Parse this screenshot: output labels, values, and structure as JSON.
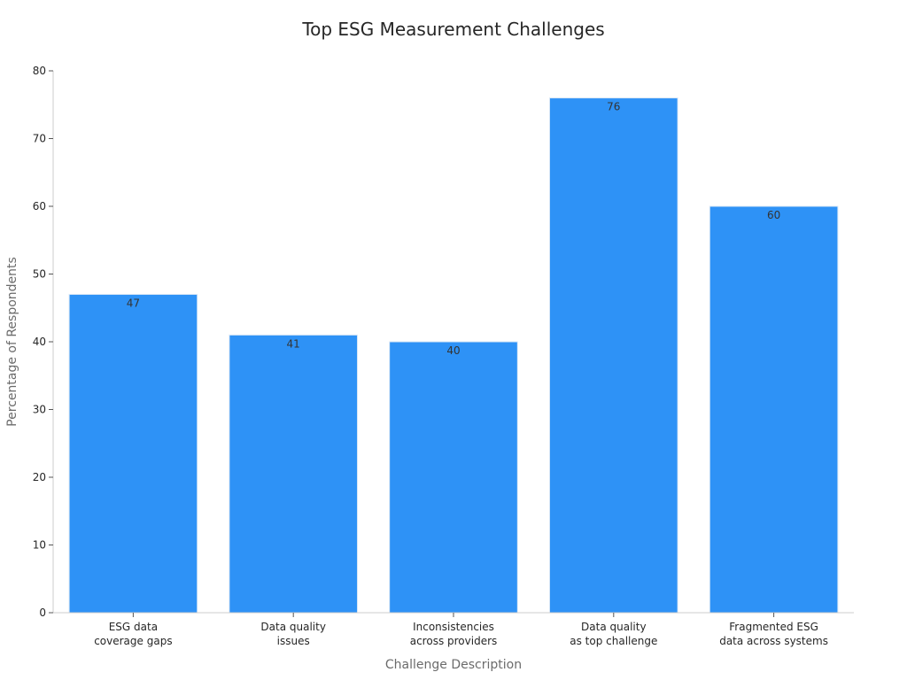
{
  "chart_data": {
    "type": "bar",
    "title": "Top ESG Measurement Challenges",
    "xlabel": "Challenge Description",
    "ylabel": "Percentage of Respondents",
    "categories": [
      [
        "ESG data",
        "coverage gaps"
      ],
      [
        "Data quality",
        "issues"
      ],
      [
        "Inconsistencies",
        "across providers"
      ],
      [
        "Data quality",
        "as top challenge"
      ],
      [
        "Fragmented ESG",
        "data across systems"
      ]
    ],
    "values": [
      47,
      41,
      40,
      76,
      60
    ],
    "ylim": [
      0,
      80
    ],
    "yticks": [
      0,
      10,
      20,
      30,
      40,
      50,
      60,
      70,
      80
    ],
    "bar_color": "#2e92f6",
    "grid": false,
    "legend": "none"
  }
}
